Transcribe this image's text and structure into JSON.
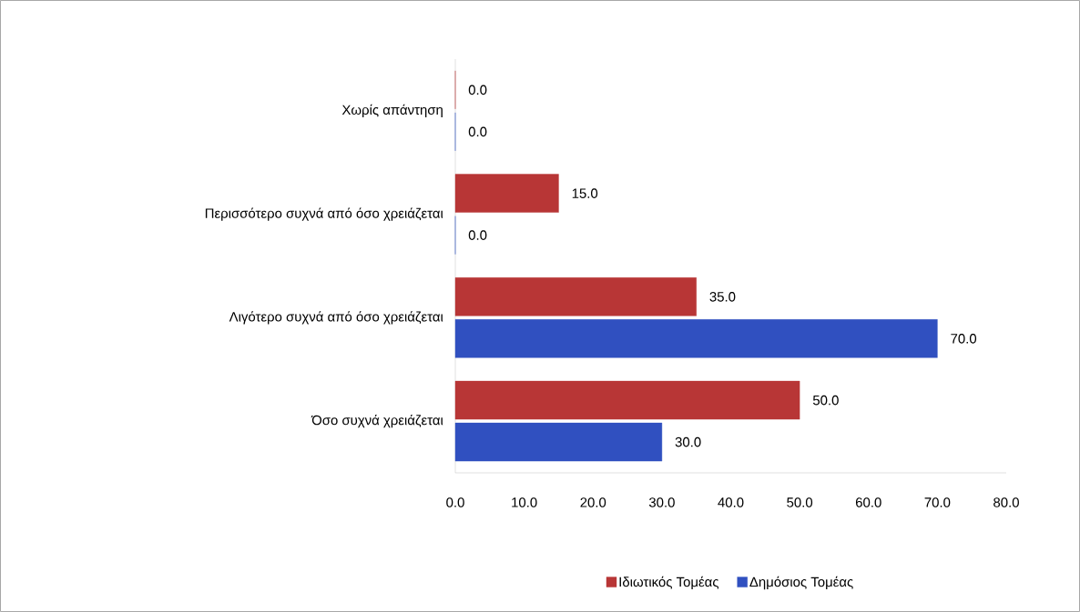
{
  "chart_data": {
    "type": "bar",
    "orientation": "horizontal",
    "categories": [
      "Χωρίς απάντηση",
      "Περισσότερο συχνά από όσο χρειάζεται",
      "Λιγότερο συχνά από όσο χρειάζεται",
      "Όσο συχνά χρειάζεται"
    ],
    "series": [
      {
        "name": "Ιδιωτικός Τομέας",
        "color": "#b83636",
        "values": [
          0,
          15,
          35,
          50
        ],
        "value_labels": [
          "0.0",
          "15.0",
          "35.0",
          "50.0"
        ]
      },
      {
        "name": "Δημόσιος Τομέας",
        "color": "#3050c0",
        "values": [
          0,
          0,
          70,
          30
        ],
        "value_labels": [
          "0.0",
          "0.0",
          "70.0",
          "30.0"
        ]
      }
    ],
    "xlim": [
      0,
      80
    ],
    "xticks": [
      {
        "value": 0,
        "label": "0.0"
      },
      {
        "value": 10,
        "label": "10.0"
      },
      {
        "value": 20,
        "label": "20.0"
      },
      {
        "value": 30,
        "label": "30.0"
      },
      {
        "value": 40,
        "label": "40.0"
      },
      {
        "value": 50,
        "label": "50.0"
      },
      {
        "value": 60,
        "label": "60.0"
      },
      {
        "value": 70,
        "label": "70.0"
      },
      {
        "value": 80,
        "label": "80.0"
      }
    ],
    "legend": "bottom",
    "grid": false
  }
}
